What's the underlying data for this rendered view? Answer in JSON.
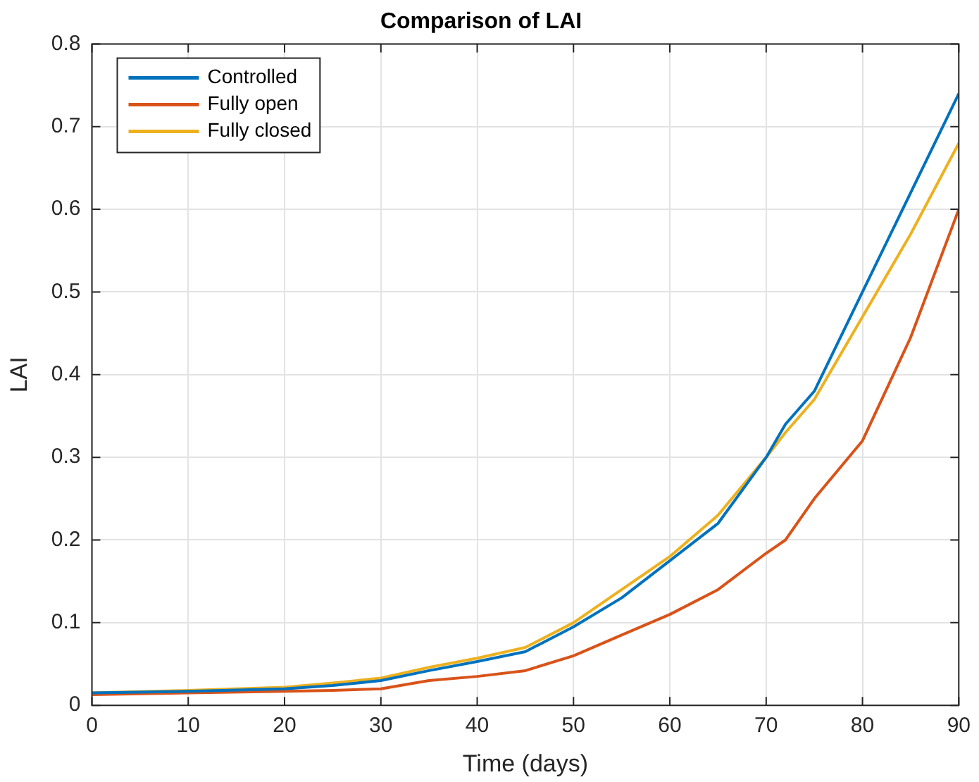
{
  "chart_data": {
    "type": "line",
    "title": "Comparison of LAI",
    "xlabel": "Time (days)",
    "ylabel": "LAI",
    "x": [
      0,
      10,
      20,
      25,
      30,
      35,
      40,
      45,
      50,
      55,
      60,
      65,
      70,
      72,
      75,
      80,
      85,
      90
    ],
    "series": [
      {
        "name": "Controlled",
        "color": "#0072bd",
        "values": [
          0.015,
          0.017,
          0.02,
          0.024,
          0.03,
          0.042,
          0.053,
          0.065,
          0.095,
          0.13,
          0.175,
          0.22,
          0.3,
          0.34,
          0.38,
          0.5,
          0.62,
          0.74
        ]
      },
      {
        "name": "Fully open",
        "color": "#d95319",
        "values": [
          0.013,
          0.015,
          0.017,
          0.018,
          0.02,
          0.03,
          0.035,
          0.042,
          0.06,
          0.085,
          0.11,
          0.14,
          0.184,
          0.2,
          0.25,
          0.32,
          0.445,
          0.6
        ]
      },
      {
        "name": "Fully closed",
        "color": "#edb120",
        "values": [
          0.015,
          0.018,
          0.022,
          0.027,
          0.033,
          0.046,
          0.057,
          0.07,
          0.1,
          0.14,
          0.18,
          0.23,
          0.3,
          0.33,
          0.37,
          0.47,
          0.57,
          0.68
        ]
      }
    ],
    "xlim": [
      0,
      90
    ],
    "xticks": [
      0,
      10,
      20,
      30,
      40,
      50,
      60,
      70,
      80,
      90
    ],
    "ylim": [
      0,
      0.8
    ],
    "yticks": [
      0,
      0.1,
      0.2,
      0.3,
      0.4,
      0.5,
      0.6,
      0.7,
      0.8
    ],
    "grid": true,
    "legend": "top left",
    "marker": "none",
    "line_style": "solid"
  }
}
